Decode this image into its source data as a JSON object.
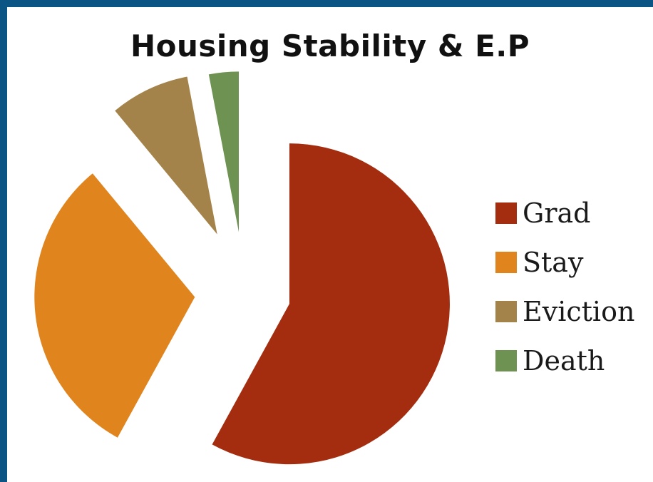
{
  "chart_data": {
    "type": "pie",
    "title": "Housing Stability & E.P",
    "categories": [
      "Grad",
      "Stay",
      "Eviction",
      "Death"
    ],
    "values": [
      58,
      31,
      8,
      3
    ],
    "colors": [
      "#a52d0f",
      "#e0841e",
      "#a4834b",
      "#6e9251"
    ],
    "exploded": true,
    "legend_position": "right"
  }
}
